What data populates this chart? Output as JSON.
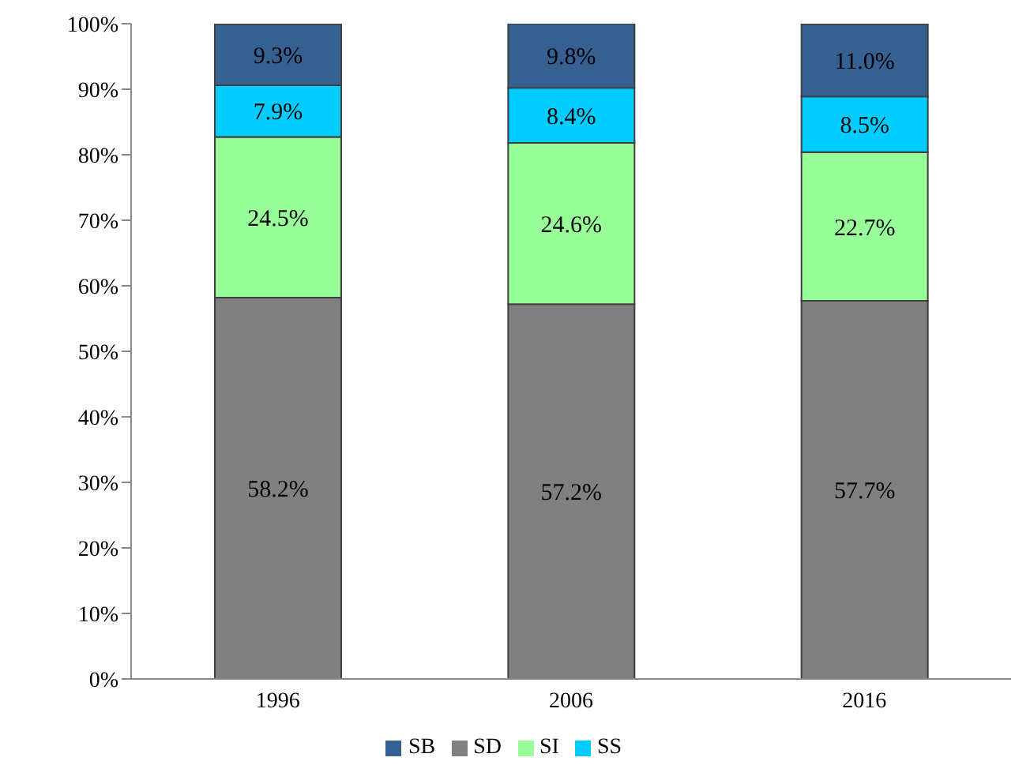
{
  "chart_data": {
    "type": "bar",
    "stacked": true,
    "categories": [
      "1996",
      "2006",
      "2016"
    ],
    "series": [
      {
        "name": "SD",
        "color": "#808080",
        "values": [
          58.2,
          57.2,
          57.7
        ],
        "value_labels": [
          "58.2%",
          "57.2%",
          "57.7%"
        ]
      },
      {
        "name": "SI",
        "color": "#99ff99",
        "values": [
          24.5,
          24.6,
          22.7
        ],
        "value_labels": [
          "24.5%",
          "24.6%",
          "22.7%"
        ]
      },
      {
        "name": "SS",
        "color": "#00ccff",
        "values": [
          7.9,
          8.4,
          8.5
        ],
        "value_labels": [
          "7.9%",
          "8.4%",
          "8.5%"
        ]
      },
      {
        "name": "SB",
        "color": "#376092",
        "values": [
          9.3,
          9.8,
          11.0
        ],
        "value_labels": [
          "9.3%",
          "9.8%",
          "11.0%"
        ]
      }
    ],
    "ylim": [
      0,
      100
    ],
    "yticks": [
      {
        "value": 0,
        "label": "0%"
      },
      {
        "value": 10,
        "label": "10%"
      },
      {
        "value": 20,
        "label": "20%"
      },
      {
        "value": 30,
        "label": "30%"
      },
      {
        "value": 40,
        "label": "40%"
      },
      {
        "value": 50,
        "label": "50%"
      },
      {
        "value": 60,
        "label": "60%"
      },
      {
        "value": 70,
        "label": "70%"
      },
      {
        "value": 80,
        "label": "80%"
      },
      {
        "value": 90,
        "label": "90%"
      },
      {
        "value": 100,
        "label": "100%"
      }
    ],
    "grid": false,
    "legend": "bottom"
  }
}
